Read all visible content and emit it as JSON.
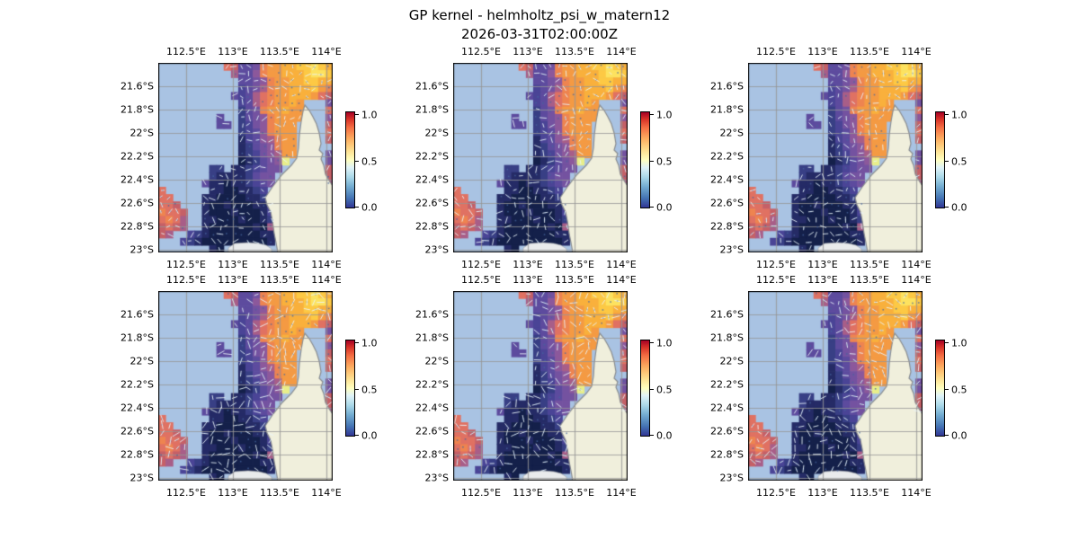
{
  "chart_data": {
    "type": "heatmap",
    "title": "GP kernel - helmholtz_psi_w_matern12",
    "subtitle": "2026-03-31T02:00:00Z",
    "layout": "2 rows x 3 columns of identical geographic panels with individual colorbars",
    "x_ticks": [
      "112.5°E",
      "113°E",
      "113.5°E",
      "114°E"
    ],
    "y_ticks": [
      "21.6°S",
      "21.8°S",
      "22°S",
      "22.2°S",
      "22.4°S",
      "22.6°S",
      "22.8°S",
      "23°S"
    ],
    "lon_range": [
      112.2,
      114.07
    ],
    "lat_range": [
      -23.02,
      -21.4
    ],
    "grid_on": true,
    "colorbar": {
      "ticks": [
        "1.0",
        "0.5",
        "0.0"
      ],
      "min": 0.0,
      "max": 1.0,
      "cmap": "RdYlBu_r",
      "gradient": [
        [
          "#313695",
          0
        ],
        [
          "#4575b4",
          10
        ],
        [
          "#74add1",
          22
        ],
        [
          "#abd9e9",
          32
        ],
        [
          "#e0f3f8",
          42
        ],
        [
          "#ffffbf",
          50
        ],
        [
          "#fee090",
          60
        ],
        [
          "#fdae61",
          72
        ],
        [
          "#f46d43",
          84
        ],
        [
          "#d73027",
          93
        ],
        [
          "#a50026",
          100
        ]
      ]
    },
    "panels": [
      {
        "id": "row1-col1",
        "seed": 11,
        "arrow_scale": 1.0
      },
      {
        "id": "row1-col2",
        "seed": 22,
        "arrow_scale": 1.05
      },
      {
        "id": "row1-col3",
        "seed": 33,
        "arrow_scale": 1.0
      },
      {
        "id": "row2-col1",
        "seed": 44,
        "arrow_scale": 1.3
      },
      {
        "id": "row2-col2",
        "seed": 55,
        "arrow_scale": 1.25
      },
      {
        "id": "row2-col3",
        "seed": 66,
        "arrow_scale": 1.2
      }
    ],
    "colors": {
      "ocean_bg": "#a9c3e3",
      "land": "#f0efdc",
      "shoal": "#e9ebec",
      "grid_line": "rgba(150,150,150,0.8)",
      "coast": "#8a8d90",
      "arrow": "rgba(235,246,252,0.88)",
      "dot": "rgba(70,101,159,0.75)",
      "border": "#000000"
    },
    "field_palette": {
      "3": "#14204a",
      "4": "#252b66",
      "5": "#383f85",
      "6": "#4a4496",
      "7": "#5d4b9e",
      "8": "#7452a0",
      "9": "#8c589b",
      "a": "#a85e88",
      "b": "#c56067",
      "c": "#e07162",
      "d": "#ee8450",
      "e": "#f49a43",
      "f": "#f9b03c",
      "g": "#fdc944",
      "h": "#fde25f",
      "i": "#e8ee8a"
    },
    "field_grid": [
      ".........cb778deeffgghgf",
      "..........a779deefffghhg",
      "...........7789deeffggff",
      "...........678adeefffged",
      "..........767acdeefffecb",
      "...........67acdeefe...8",
      "...........578deefee...c",
      "........7..5789deeee...9",
      "........77.5689deee....b",
      "...........5679deee....c",
      "...........4679adee....b",
      "...........45789dee.....",
      "...........45689aee....8",
      "...........345789i.....8",
      ".......55.4456788......b",
      ".......544445788.......b",
      "......7443445678.......a",
      "c......44334456.........",
      "cc....443333445.........",
      "ccb...4334333446........",
      "dccb..4333433346........",
      "cdca..4433343345........",
      "bcba..433333343a........",
      "ba..654333333344........",
      "...6543333333334........",
      ".......43..............."
    ],
    "land_path": [
      [
        163,
        47
      ],
      [
        168,
        53
      ],
      [
        172,
        60
      ],
      [
        176,
        68
      ],
      [
        179,
        78
      ],
      [
        181,
        90
      ],
      [
        179,
        97
      ],
      [
        183,
        101
      ],
      [
        181,
        107
      ],
      [
        184,
        114
      ],
      [
        186,
        124
      ],
      [
        190,
        131
      ],
      [
        194,
        137
      ],
      [
        194,
        211
      ],
      [
        133,
        211
      ],
      [
        131,
        200
      ],
      [
        129,
        190
      ],
      [
        127,
        176
      ],
      [
        125,
        166
      ],
      [
        121,
        158
      ],
      [
        119,
        150
      ],
      [
        127,
        138
      ],
      [
        138,
        124
      ],
      [
        148,
        114
      ],
      [
        154,
        106
      ],
      [
        156,
        95
      ],
      [
        157,
        80
      ],
      [
        159,
        65
      ],
      [
        161,
        54
      ]
    ],
    "shoal_path": [
      [
        78,
        206
      ],
      [
        85,
        201
      ],
      [
        100,
        200
      ],
      [
        112,
        201
      ],
      [
        120,
        203
      ],
      [
        126,
        207
      ],
      [
        126,
        211
      ],
      [
        78,
        211
      ]
    ]
  }
}
